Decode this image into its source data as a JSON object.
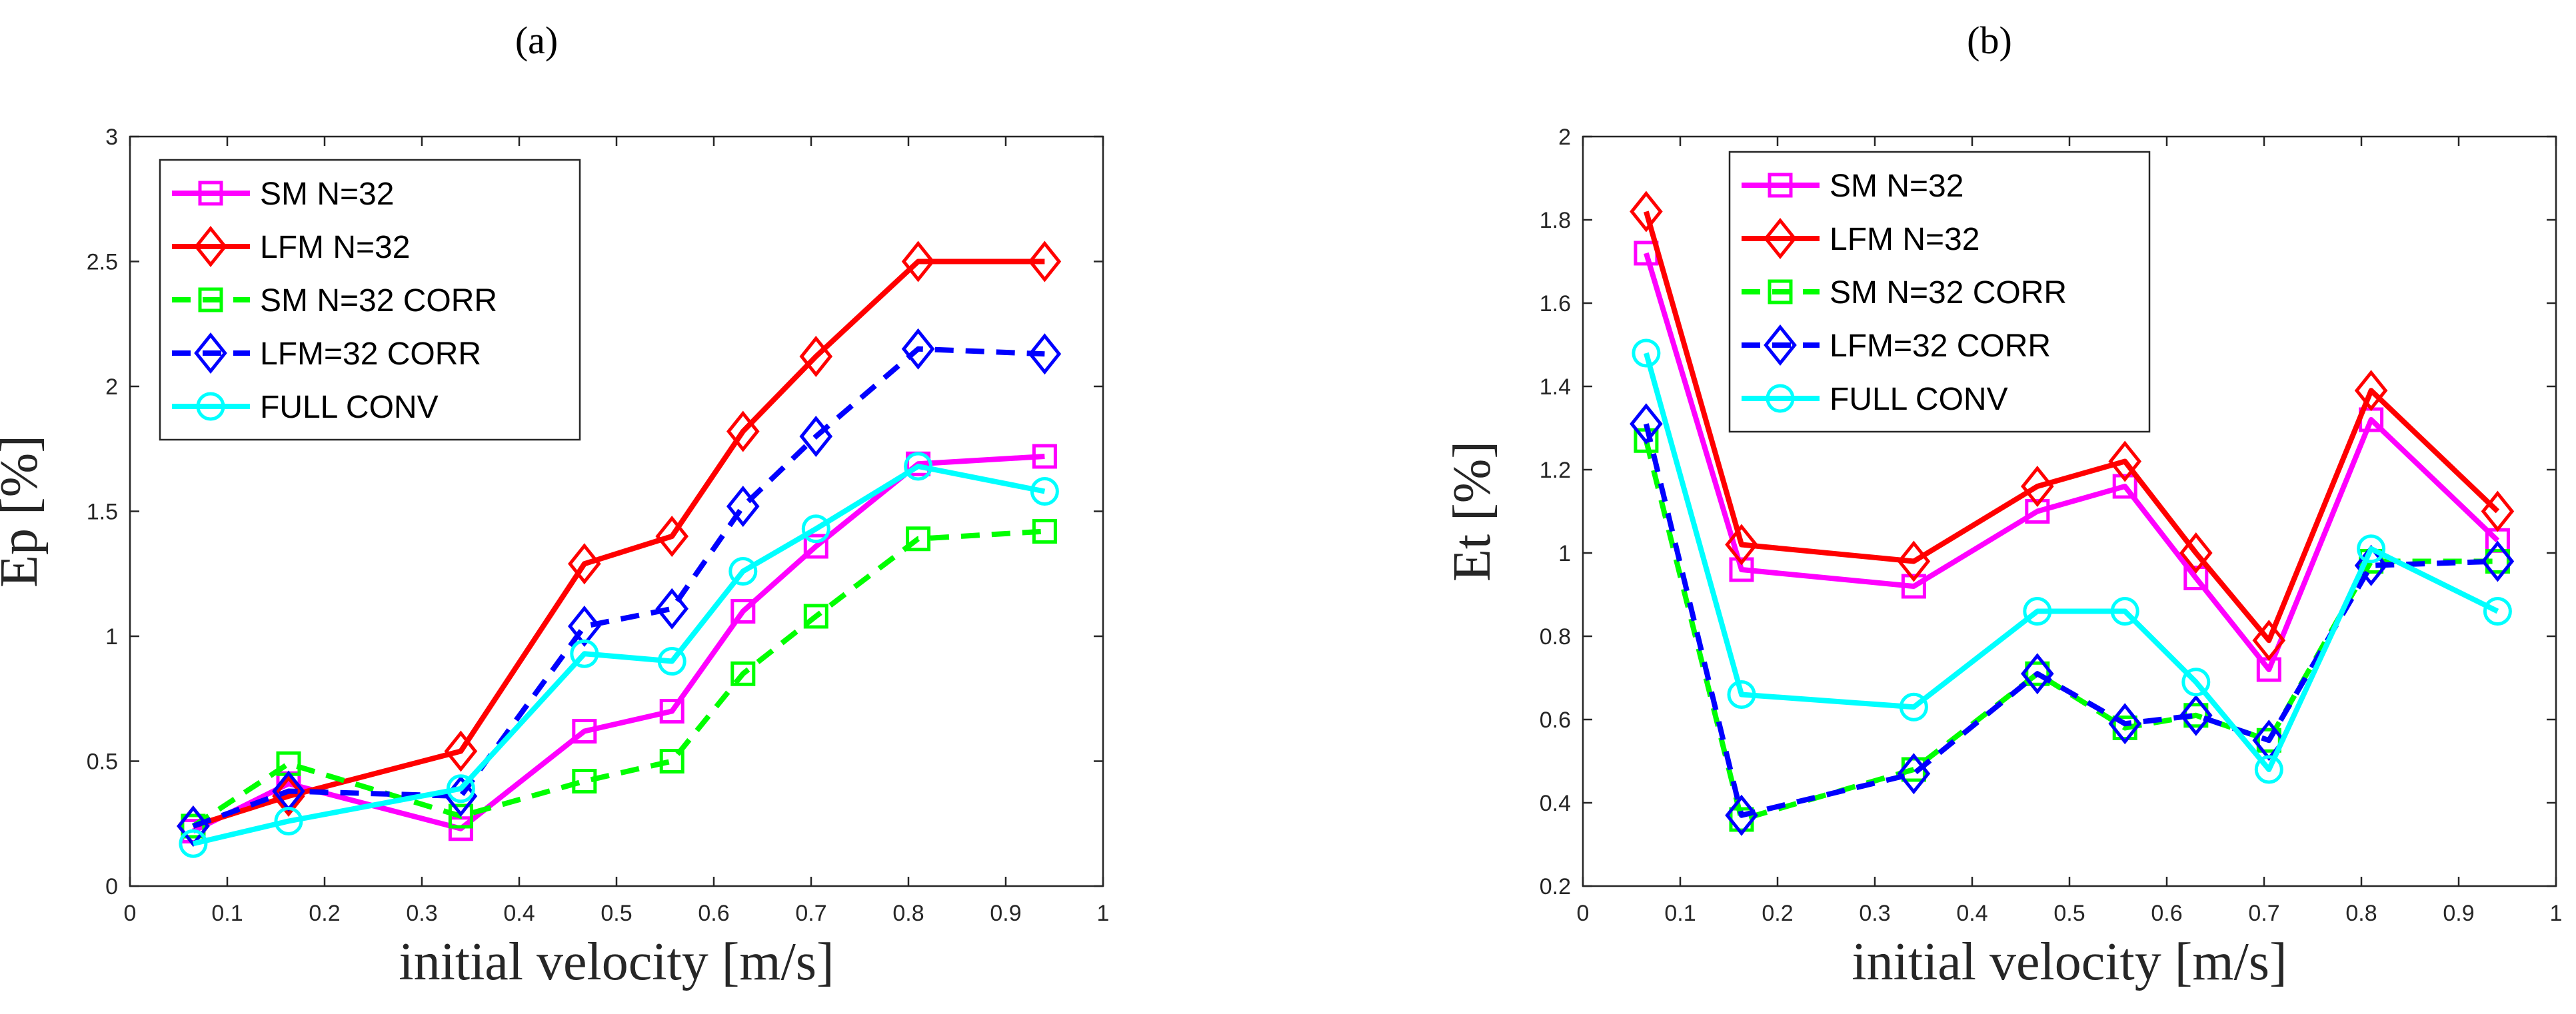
{
  "panels": [
    {
      "label": "(a)",
      "type": "line",
      "xlabel": "initial velocity [m/s]",
      "ylabel": "Ep [%]",
      "xlim": [
        0,
        1
      ],
      "ylim": [
        0,
        3
      ],
      "xticks": [
        0,
        0.1,
        0.2,
        0.3,
        0.4,
        0.5,
        0.6,
        0.7,
        0.8,
        0.9,
        1
      ],
      "xtick_labels": [
        "0",
        "0.1",
        "0.2",
        "0.3",
        "0.4",
        "0.5",
        "0.6",
        "0.7",
        "0.8",
        "0.9",
        "1"
      ],
      "yticks": [
        0,
        0.5,
        1,
        1.5,
        2,
        2.5,
        3
      ],
      "ytick_labels": [
        "0",
        "0.5",
        "1",
        "1.5",
        "2",
        "2.5",
        "3"
      ],
      "grid": false,
      "legend_position": "top-left",
      "x": [
        0.065,
        0.163,
        0.34,
        0.467,
        0.557,
        0.63,
        0.705,
        0.81,
        0.94
      ],
      "series": [
        {
          "name": "SM N=32",
          "color": "#ff00ff",
          "dash": "solid",
          "marker": "square",
          "values": [
            0.22,
            0.41,
            0.23,
            0.62,
            0.7,
            1.1,
            1.36,
            1.69,
            1.72
          ]
        },
        {
          "name": "LFM N=32",
          "color": "#ff0000",
          "dash": "solid",
          "marker": "diamond",
          "values": [
            0.24,
            0.36,
            0.54,
            1.29,
            1.4,
            1.82,
            2.12,
            2.5,
            2.5
          ]
        },
        {
          "name": "SM N=32 CORR",
          "color": "#00ff00",
          "dash": "dashed",
          "marker": "square",
          "values": [
            0.24,
            0.49,
            0.28,
            0.42,
            0.5,
            0.85,
            1.08,
            1.39,
            1.42
          ]
        },
        {
          "name": "LFM=32 CORR",
          "color": "#0000ff",
          "dash": "dashed",
          "marker": "diamond",
          "values": [
            0.24,
            0.38,
            0.36,
            1.04,
            1.11,
            1.52,
            1.8,
            2.15,
            2.13
          ]
        },
        {
          "name": "FULL CONV",
          "color": "#00ffff",
          "dash": "solid",
          "marker": "circle",
          "values": [
            0.17,
            0.26,
            0.39,
            0.93,
            0.9,
            1.26,
            1.43,
            1.68,
            1.58
          ]
        }
      ]
    },
    {
      "label": "(b)",
      "type": "line",
      "xlabel": "initial velocity [m/s]",
      "ylabel": "Et [%]",
      "xlim": [
        0,
        1
      ],
      "ylim": [
        0.2,
        2
      ],
      "xticks": [
        0,
        0.1,
        0.2,
        0.3,
        0.4,
        0.5,
        0.6,
        0.7,
        0.8,
        0.9,
        1
      ],
      "xtick_labels": [
        "0",
        "0.1",
        "0.2",
        "0.3",
        "0.4",
        "0.5",
        "0.6",
        "0.7",
        "0.8",
        "0.9",
        "1"
      ],
      "yticks": [
        0.2,
        0.4,
        0.6,
        0.8,
        1,
        1.2,
        1.4,
        1.6,
        1.8,
        2
      ],
      "ytick_labels": [
        "0.2",
        "0.4",
        "0.6",
        "0.8",
        "1",
        "1.2",
        "1.4",
        "1.6",
        "1.8",
        "2"
      ],
      "grid": false,
      "legend_position": "top-left",
      "x": [
        0.065,
        0.163,
        0.34,
        0.467,
        0.557,
        0.63,
        0.705,
        0.81,
        0.94
      ],
      "series": [
        {
          "name": "SM N=32",
          "color": "#ff00ff",
          "dash": "solid",
          "marker": "square",
          "values": [
            1.72,
            0.96,
            0.92,
            1.1,
            1.16,
            0.94,
            0.72,
            1.32,
            1.03
          ]
        },
        {
          "name": "LFM N=32",
          "color": "#ff0000",
          "dash": "solid",
          "marker": "diamond",
          "values": [
            1.82,
            1.02,
            0.98,
            1.16,
            1.22,
            1.0,
            0.79,
            1.39,
            1.1
          ]
        },
        {
          "name": "SM N=32 CORR",
          "color": "#00ff00",
          "dash": "dashed",
          "marker": "square",
          "values": [
            1.27,
            0.36,
            0.48,
            0.71,
            0.58,
            0.61,
            0.55,
            0.98,
            0.98
          ]
        },
        {
          "name": "LFM=32 CORR",
          "color": "#0000ff",
          "dash": "dashed",
          "marker": "diamond",
          "values": [
            1.31,
            0.37,
            0.47,
            0.71,
            0.59,
            0.61,
            0.55,
            0.97,
            0.98
          ]
        },
        {
          "name": "FULL CONV",
          "color": "#00ffff",
          "dash": "solid",
          "marker": "circle",
          "values": [
            1.48,
            0.66,
            0.63,
            0.86,
            0.86,
            0.69,
            0.48,
            1.01,
            0.86
          ]
        }
      ]
    }
  ]
}
